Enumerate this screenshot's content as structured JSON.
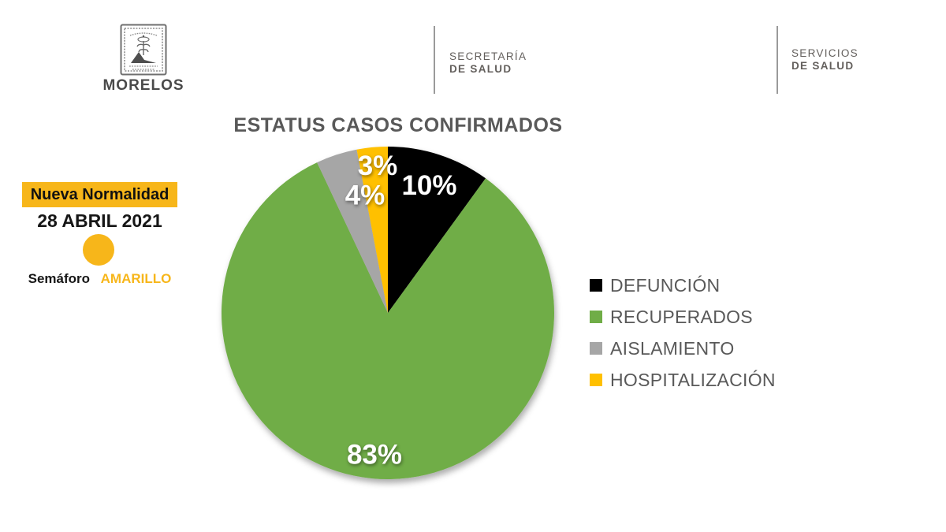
{
  "header": {
    "morelos_label": "MORELOS",
    "secretaria": {
      "line1": "SECRETARÍA",
      "line2": "DE SALUD"
    },
    "servicios": {
      "line1": "SERVICIOS",
      "line2": "DE SALUD"
    }
  },
  "status_panel": {
    "banner_label": "Nueva Normalidad",
    "date": "28 ABRIL 2021",
    "semaforo_label": "Semáforo",
    "semaforo_value": "AMARILLO"
  },
  "colors": {
    "banner_yellow": "#F7B61A",
    "semaforo_yellow": "#F7B61A",
    "title_gray": "#595959"
  },
  "chart_data": {
    "type": "pie",
    "title": "ESTATUS CASOS CONFIRMADOS",
    "start_angle_deg": 0,
    "direction": "clockwise",
    "legend_position": "right",
    "slices": [
      {
        "label": "DEFUNCIÓN",
        "value_pct": 10,
        "color": "#000000",
        "data_label": "10%"
      },
      {
        "label": "RECUPERADOS",
        "value_pct": 83,
        "color": "#70AD47",
        "data_label": "83%"
      },
      {
        "label": "AISLAMIENTO",
        "value_pct": 4,
        "color": "#A6A6A6",
        "data_label": "4%"
      },
      {
        "label": "HOSPITALIZACIÓN",
        "value_pct": 3,
        "color": "#FFC000",
        "data_label": "3%"
      }
    ]
  }
}
